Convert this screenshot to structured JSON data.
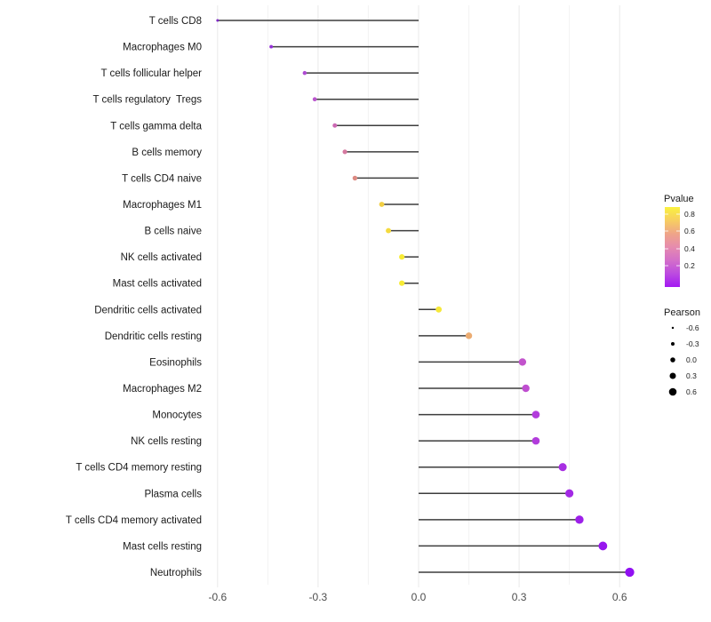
{
  "chart_data": {
    "type": "scatter",
    "subtype": "lollipop",
    "title": "",
    "xlabel": "",
    "ylabel": "",
    "xlim": [
      -0.63,
      0.68
    ],
    "x_ticks": [
      -0.6,
      -0.3,
      0.0,
      0.3,
      0.6
    ],
    "x_tick_labels": [
      "-0.6",
      "-0.3",
      "0.0",
      "0.3",
      "0.6"
    ],
    "x_minor_ticks": [
      -0.45,
      -0.15,
      0.15,
      0.45
    ],
    "grid": true,
    "baseline_x": 0.0,
    "points": [
      {
        "label": "T cells CD8",
        "pearson": -0.6,
        "color": "#7e28c4"
      },
      {
        "label": "Macrophages M0",
        "pearson": -0.44,
        "color": "#9330d6"
      },
      {
        "label": "T cells follicular helper",
        "pearson": -0.34,
        "color": "#ae4ad2"
      },
      {
        "label": "T cells regulatory  Tregs",
        "pearson": -0.31,
        "color": "#ba55cd"
      },
      {
        "label": "T cells gamma delta",
        "pearson": -0.25,
        "color": "#cb68b3"
      },
      {
        "label": "B cells memory",
        "pearson": -0.22,
        "color": "#d5789f"
      },
      {
        "label": "T cells CD4 naive",
        "pearson": -0.19,
        "color": "#dc8a82"
      },
      {
        "label": "Macrophages M1",
        "pearson": -0.11,
        "color": "#f2cf43"
      },
      {
        "label": "B cells naive",
        "pearson": -0.09,
        "color": "#f4da3e"
      },
      {
        "label": "NK cells activated",
        "pearson": -0.05,
        "color": "#f7eb35"
      },
      {
        "label": "Mast cells activated",
        "pearson": -0.05,
        "color": "#f7eb35"
      },
      {
        "label": "Dendritic cells activated",
        "pearson": 0.06,
        "color": "#f6e83a"
      },
      {
        "label": "Dendritic cells resting",
        "pearson": 0.15,
        "color": "#ebac72"
      },
      {
        "label": "Eosinophils",
        "pearson": 0.31,
        "color": "#c253cc"
      },
      {
        "label": "Macrophages M2",
        "pearson": 0.32,
        "color": "#bf4ed0"
      },
      {
        "label": "Monocytes",
        "pearson": 0.35,
        "color": "#b23cdc"
      },
      {
        "label": "NK cells resting",
        "pearson": 0.35,
        "color": "#b23cdc"
      },
      {
        "label": "T cells CD4 memory resting",
        "pearson": 0.43,
        "color": "#a72ee2"
      },
      {
        "label": "Plasma cells",
        "pearson": 0.45,
        "color": "#a329e5"
      },
      {
        "label": "T cells CD4 memory activated",
        "pearson": 0.48,
        "color": "#9d20e9"
      },
      {
        "label": "Mast cells resting",
        "pearson": 0.55,
        "color": "#9717ee"
      },
      {
        "label": "Neutrophils",
        "pearson": 0.63,
        "color": "#9110f2"
      }
    ],
    "legend_pvalue": {
      "title": "Pvalue",
      "tick_labels": [
        "0.8",
        "0.6",
        "0.4",
        "0.2"
      ],
      "gradient_top_to_bottom": [
        "#faf13f",
        "#f7ce61",
        "#efa588",
        "#e68bae",
        "#d36fc9",
        "#bc4be0",
        "#a318f2"
      ]
    },
    "legend_pearson": {
      "title": "Pearson",
      "tick_labels": [
        "-0.6",
        "-0.3",
        "0.0",
        "0.3",
        "0.6"
      ],
      "values": [
        -0.6,
        -0.3,
        0.0,
        0.3,
        0.6
      ],
      "dot_color": "#000000"
    },
    "colors": {
      "segment": "#3d3d3d",
      "grid_major": "#e9e9e9",
      "grid_minor": "#f3f3f3",
      "background": "#ffffff"
    }
  }
}
